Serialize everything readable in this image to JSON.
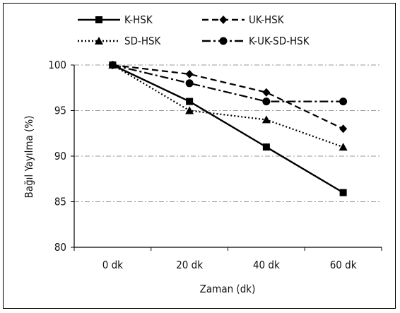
{
  "chart_data": {
    "type": "line",
    "title": "",
    "xlabel": "Zaman (dk)",
    "ylabel": "Bağıl Yayılma (%)",
    "categories": [
      "0 dk",
      "20 dk",
      "40 dk",
      "60 dk"
    ],
    "ylim": [
      80,
      100
    ],
    "yticks": [
      80,
      85,
      90,
      95,
      100
    ],
    "grid": "horizontal, dash-dot",
    "legend_position": "top",
    "series": [
      {
        "name": "K-HSK",
        "values": [
          100,
          96,
          91,
          86
        ],
        "marker": "square",
        "line": "solid",
        "color": "#000000"
      },
      {
        "name": "UK-HSK",
        "values": [
          100,
          99,
          97,
          93
        ],
        "marker": "diamond",
        "line": "dashed",
        "color": "#000000"
      },
      {
        "name": "SD-HSK",
        "values": [
          100,
          95,
          94,
          91
        ],
        "marker": "triangle",
        "line": "dotted",
        "color": "#000000"
      },
      {
        "name": "K-UK-SD-HSK",
        "values": [
          100,
          98,
          96,
          96
        ],
        "marker": "circle",
        "line": "dash-dot",
        "color": "#000000"
      }
    ]
  }
}
